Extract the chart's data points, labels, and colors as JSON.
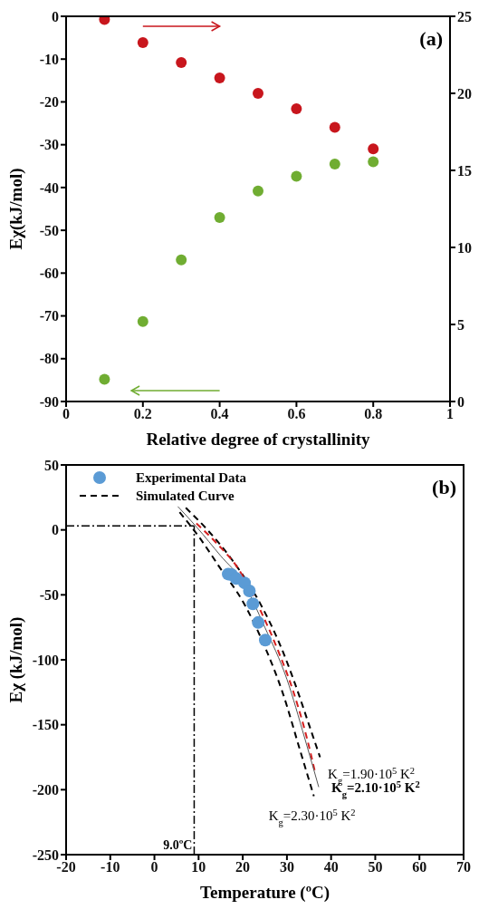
{
  "chart_data": [
    {
      "type": "scatter",
      "xlabel": "Relative degree of crystallinity",
      "ylabel": "Eχ(kJ/mol)",
      "x": [
        0.1,
        0.2,
        0.3,
        0.4,
        0.5,
        0.6,
        0.7,
        0.8
      ],
      "xlim": [
        0,
        1
      ],
      "xticks": [
        0,
        0.2,
        0.4,
        0.6,
        0.8,
        1
      ],
      "ylim": [
        -90,
        0
      ],
      "yticks": [
        -90,
        -80,
        -70,
        -60,
        -50,
        -40,
        -30,
        -20,
        -10,
        0
      ],
      "y2lim": [
        0,
        25
      ],
      "y2ticks": [
        0,
        5,
        10,
        15,
        20,
        25
      ],
      "marker": "circle",
      "legend": false,
      "annotations": [
        "(a)"
      ],
      "series": [
        {
          "color": "#70ad32",
          "values": [
            -84.8,
            -71.3,
            -56.9,
            -47,
            -40.8,
            -37.4,
            -34.5,
            -34
          ]
        },
        {
          "color": "#c8161d",
          "axis": "y2",
          "values": [
            24.8,
            23.3,
            22,
            21,
            20,
            19,
            17.8,
            16.4
          ]
        }
      ]
    },
    {
      "type": "scatter",
      "xlabel": "Temperature (ºC)",
      "ylabel": "Eχ (kJ/mol)",
      "xlim": [
        -20,
        70
      ],
      "xticks": [
        -20,
        -10,
        0,
        10,
        20,
        30,
        40,
        50,
        60,
        70
      ],
      "ylim": [
        -250,
        50
      ],
      "yticks": [
        -250,
        -200,
        -150,
        -100,
        -50,
        0,
        50
      ],
      "legend": "top left",
      "ref_lines": [
        {
          "axis": "x",
          "value": 9,
          "label": "9.0ºC"
        },
        {
          "axis": "y",
          "value": 3
        }
      ],
      "annotations": [
        "(b)",
        "K$_{g}$=1.90·10$^{5}$ K$^{2}$",
        "K$_{g}$=2.10·10$^{5}$ K$^{2}$",
        "K$_{g}$=2.30·10$^{5}$ K$^{2}$"
      ],
      "series": [
        {
          "name": "Experimental Data",
          "marker": "circle",
          "color": "#5b9bd5",
          "x": [
            16.7,
            17.5,
            18.5,
            20.4,
            21.5,
            22.3,
            23.5,
            25.1
          ],
          "values": [
            -34,
            -34.5,
            -37.4,
            -40.8,
            -47,
            -56.9,
            -71.3,
            -84.8
          ]
        },
        {
          "name": "Simulated Curve",
          "type": "line",
          "marker": "none",
          "line_style": "dashed",
          "color": "#000000",
          "x": [
            7.1,
            12,
            18,
            24,
            29,
            32,
            35,
            37.5
          ],
          "values": [
            17,
            0,
            -25,
            -57,
            -93,
            -120,
            -150,
            -175
          ]
        },
        {
          "type": "line",
          "marker": "none",
          "line_style": "dashed",
          "color": "#d42020",
          "x": [
            9.5,
            14,
            19,
            24,
            28,
            31.5,
            34.5,
            36.4
          ],
          "values": [
            5,
            -10,
            -30,
            -62,
            -93,
            -125,
            -160,
            -187
          ]
        },
        {
          "type": "line",
          "marker": "none",
          "line_style": "solid",
          "color": "#555555",
          "x": [
            5.3,
            9.6,
            15,
            20,
            25,
            30,
            34,
            37.2
          ],
          "values": [
            18,
            2,
            -20,
            -40,
            -75,
            -115,
            -160,
            -198
          ]
        },
        {
          "type": "line",
          "marker": "none",
          "line_style": "dashed",
          "color": "#000000",
          "x": [
            5.7,
            10,
            15,
            20,
            25,
            29,
            33,
            36.1
          ],
          "values": [
            13.6,
            -5,
            -30,
            -55,
            -90,
            -125,
            -170,
            -205
          ]
        }
      ]
    }
  ]
}
